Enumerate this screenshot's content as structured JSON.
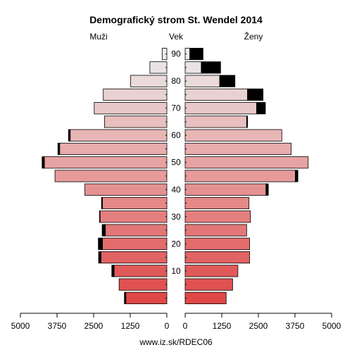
{
  "chart_data": {
    "type": "bar",
    "orientation": "horizontal",
    "title": "Demografický strom St. Wendel 2014",
    "left_label": "Muži",
    "center_label": "Vek",
    "right_label": "Ženy",
    "footer": "www.iz.sk/RDEC06",
    "age_groups": [
      "0-4",
      "5-9",
      "10-14",
      "15-19",
      "20-24",
      "25-29",
      "30-34",
      "35-39",
      "40-44",
      "45-49",
      "50-54",
      "55-59",
      "60-64",
      "65-69",
      "70-74",
      "75-79",
      "80-84",
      "85-89",
      "90+"
    ],
    "age_ticks": [
      10,
      20,
      30,
      40,
      50,
      60,
      70,
      80,
      90
    ],
    "x_ticks": [
      0,
      1250,
      2500,
      3750,
      5000
    ],
    "xlim": [
      0,
      5000
    ],
    "men": {
      "base": [
        1400,
        1630,
        1800,
        2250,
        2200,
        2100,
        2280,
        2200,
        2800,
        3820,
        4180,
        3660,
        3300,
        2130,
        2480,
        2170,
        1240,
        580,
        160
      ],
      "excess": [
        50,
        0,
        80,
        80,
        140,
        110,
        20,
        30,
        0,
        0,
        80,
        60,
        60,
        0,
        0,
        0,
        0,
        0,
        0
      ]
    },
    "women": {
      "base": [
        1400,
        1620,
        1800,
        2200,
        2200,
        2100,
        2230,
        2180,
        2760,
        3760,
        4200,
        3620,
        3300,
        2100,
        2440,
        2130,
        1180,
        550,
        160
      ],
      "excess": [
        0,
        0,
        0,
        0,
        0,
        0,
        0,
        0,
        80,
        90,
        0,
        0,
        0,
        30,
        300,
        530,
        520,
        660,
        450
      ]
    },
    "colors": {
      "young": "#e04848",
      "old": "#ececec",
      "excess": "#000000",
      "frame": "#000000"
    }
  }
}
